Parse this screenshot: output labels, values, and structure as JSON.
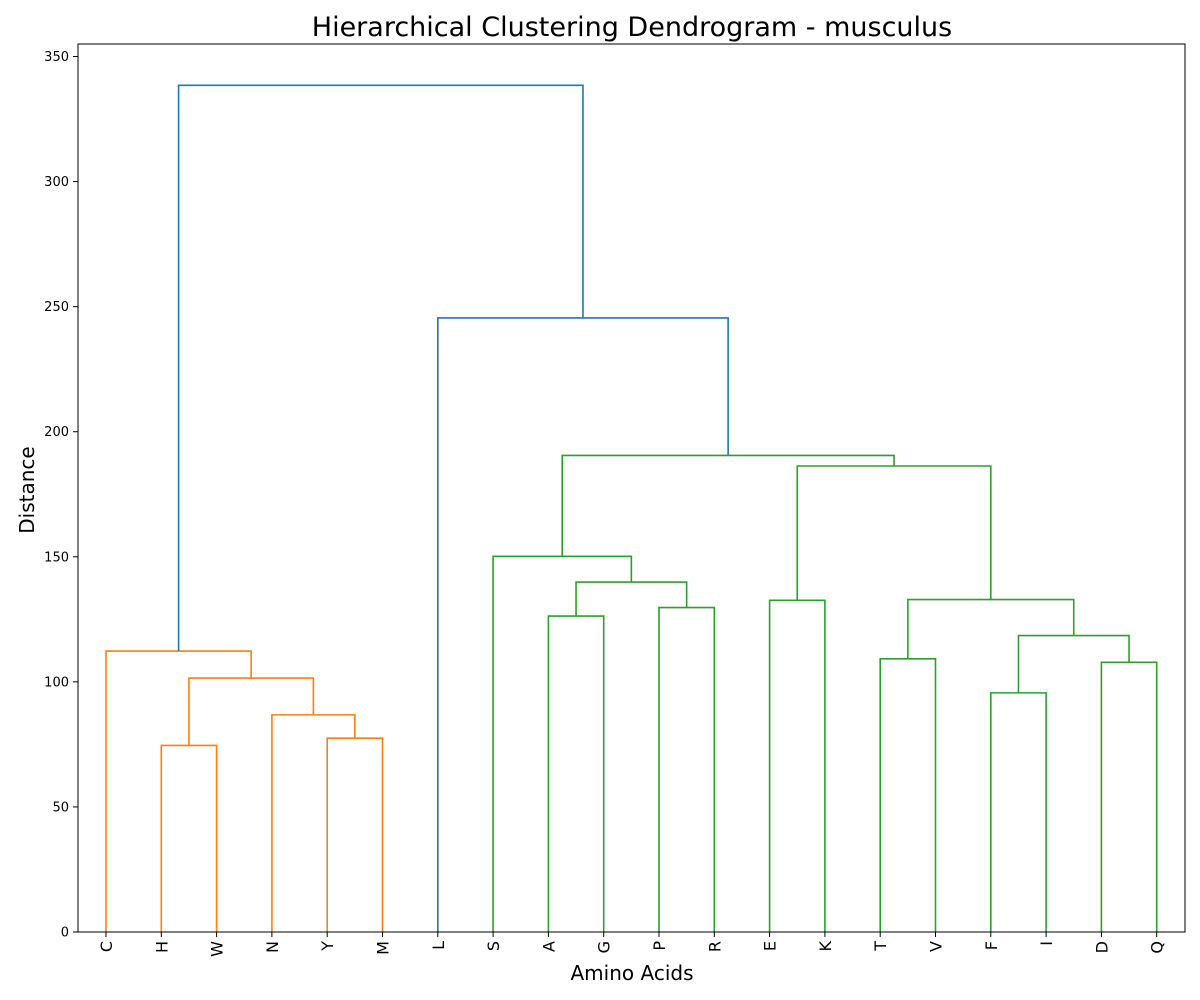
{
  "chart_data": {
    "type": "dendrogram",
    "title": "Hierarchical Clustering Dendrogram - musculus",
    "xlabel": "Amino Acids",
    "ylabel": "Distance",
    "ylim": [
      0,
      355
    ],
    "yticks": [
      0,
      50,
      100,
      150,
      200,
      250,
      300,
      350
    ],
    "leaves": [
      "C",
      "H",
      "W",
      "N",
      "Y",
      "M",
      "L",
      "S",
      "A",
      "G",
      "P",
      "R",
      "E",
      "K",
      "T",
      "V",
      "F",
      "I",
      "D",
      "Q"
    ],
    "cluster_colors": {
      "orange": "#ff7f0e",
      "green": "#2ca02c",
      "link": "#1f77b4"
    },
    "merges": [
      {
        "a": [
          "H"
        ],
        "b": [
          "W"
        ],
        "distance": 74.6,
        "color": "#ff7f0e"
      },
      {
        "a": [
          "Y"
        ],
        "b": [
          "M"
        ],
        "distance": 77.5,
        "color": "#ff7f0e"
      },
      {
        "a": [
          "N"
        ],
        "b": [
          "Y",
          "M"
        ],
        "distance": 86.8,
        "color": "#ff7f0e"
      },
      {
        "a": [
          "H",
          "W"
        ],
        "b": [
          "N",
          "Y",
          "M"
        ],
        "distance": 101.5,
        "color": "#ff7f0e"
      },
      {
        "a": [
          "C"
        ],
        "b": [
          "H",
          "W",
          "N",
          "Y",
          "M"
        ],
        "distance": 112.3,
        "color": "#ff7f0e"
      },
      {
        "a": [
          "A"
        ],
        "b": [
          "G"
        ],
        "distance": 126.3,
        "color": "#2ca02c"
      },
      {
        "a": [
          "P"
        ],
        "b": [
          "R"
        ],
        "distance": 129.7,
        "color": "#2ca02c"
      },
      {
        "a": [
          "A",
          "G"
        ],
        "b": [
          "P",
          "R"
        ],
        "distance": 139.9,
        "color": "#2ca02c"
      },
      {
        "a": [
          "S"
        ],
        "b": [
          "A",
          "G",
          "P",
          "R"
        ],
        "distance": 150.2,
        "color": "#2ca02c"
      },
      {
        "a": [
          "E"
        ],
        "b": [
          "K"
        ],
        "distance": 132.6,
        "color": "#2ca02c"
      },
      {
        "a": [
          "T"
        ],
        "b": [
          "V"
        ],
        "distance": 109.2,
        "color": "#2ca02c"
      },
      {
        "a": [
          "F"
        ],
        "b": [
          "I"
        ],
        "distance": 95.6,
        "color": "#2ca02c"
      },
      {
        "a": [
          "D"
        ],
        "b": [
          "Q"
        ],
        "distance": 107.8,
        "color": "#2ca02c"
      },
      {
        "a": [
          "F",
          "I"
        ],
        "b": [
          "D",
          "Q"
        ],
        "distance": 118.5,
        "color": "#2ca02c"
      },
      {
        "a": [
          "T",
          "V"
        ],
        "b": [
          "F",
          "I",
          "D",
          "Q"
        ],
        "distance": 132.9,
        "color": "#2ca02c"
      },
      {
        "a": [
          "E",
          "K"
        ],
        "b": [
          "T",
          "V",
          "F",
          "I",
          "D",
          "Q"
        ],
        "distance": 186.3,
        "color": "#2ca02c"
      },
      {
        "a": [
          "S",
          "A",
          "G",
          "P",
          "R"
        ],
        "b": [
          "E",
          "K",
          "T",
          "V",
          "F",
          "I",
          "D",
          "Q"
        ],
        "distance": 190.5,
        "color": "#2ca02c"
      },
      {
        "a": [
          "L"
        ],
        "b": [
          "S",
          "A",
          "G",
          "P",
          "R",
          "E",
          "K",
          "T",
          "V",
          "F",
          "I",
          "D",
          "Q"
        ],
        "distance": 245.5,
        "color": "#1f77b4"
      },
      {
        "a": [
          "C",
          "H",
          "W",
          "N",
          "Y",
          "M"
        ],
        "b": [
          "L",
          "S",
          "A",
          "G",
          "P",
          "R",
          "E",
          "K",
          "T",
          "V",
          "F",
          "I",
          "D",
          "Q"
        ],
        "distance": 338.5,
        "color": "#1f77b4"
      }
    ]
  }
}
